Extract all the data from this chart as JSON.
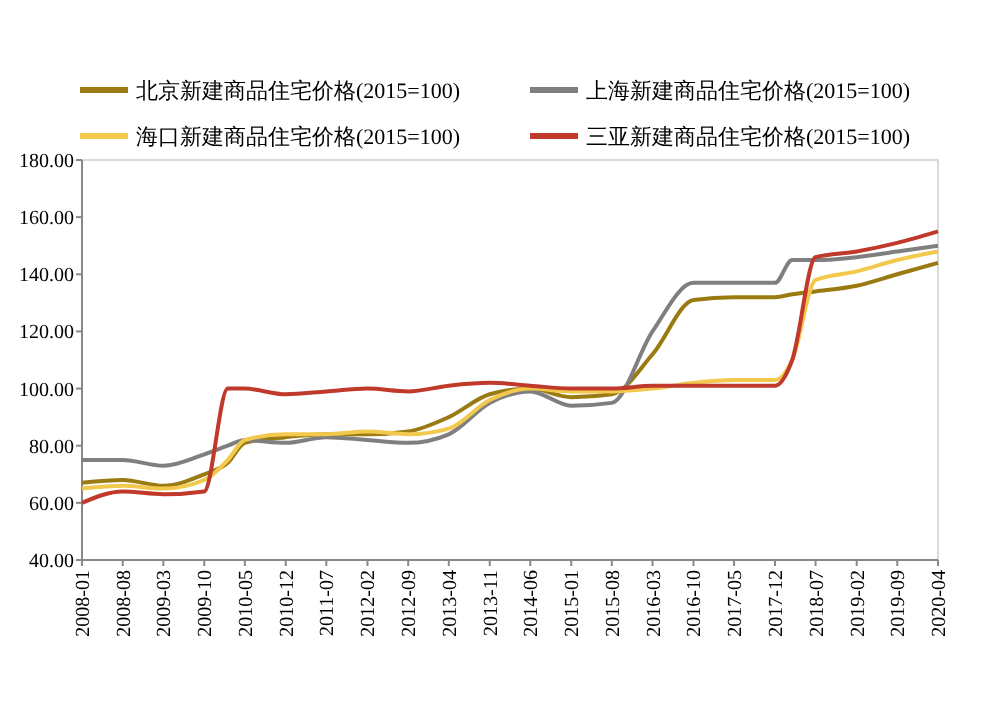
{
  "chart_data": {
    "type": "line",
    "legend": "top",
    "grid": false,
    "xlim": [
      "2008-01",
      "2020-04"
    ],
    "xticks": [
      "2008-01",
      "2008-08",
      "2009-03",
      "2009-10",
      "2010-05",
      "2010-12",
      "2011-07",
      "2012-02",
      "2012-09",
      "2013-04",
      "2013-11",
      "2014-06",
      "2015-01",
      "2015-08",
      "2016-03",
      "2016-10",
      "2017-05",
      "2017-12",
      "2018-07",
      "2019-02",
      "2019-09",
      "2020-04"
    ],
    "ylim": [
      40,
      180
    ],
    "yticks": [
      {
        "value": 40,
        "label": "40.00"
      },
      {
        "value": 60,
        "label": "60.00"
      },
      {
        "value": 80,
        "label": "80.00"
      },
      {
        "value": 100,
        "label": "100.00"
      },
      {
        "value": 120,
        "label": "120.00"
      },
      {
        "value": 140,
        "label": "140.00"
      },
      {
        "value": 160,
        "label": "160.00"
      },
      {
        "value": 180,
        "label": "180.00"
      }
    ],
    "x": [
      "2008-01",
      "2008-08",
      "2009-03",
      "2009-10",
      "2010-02",
      "2010-05",
      "2010-12",
      "2011-07",
      "2012-02",
      "2012-09",
      "2013-04",
      "2013-11",
      "2014-06",
      "2015-01",
      "2015-08",
      "2016-03",
      "2016-10",
      "2017-05",
      "2017-12",
      "2018-03",
      "2018-07",
      "2019-02",
      "2019-09",
      "2020-04"
    ],
    "series": [
      {
        "name": "北京新建商品住宅价格(2015=100)",
        "color": "#9a7b12",
        "values": [
          67,
          68,
          66,
          70,
          74,
          81,
          83,
          84,
          84,
          85,
          90,
          98,
          100,
          97,
          98,
          112,
          131,
          132,
          132,
          133,
          134,
          136,
          140,
          144
        ]
      },
      {
        "name": "上海新建商品住宅价格(2015=100)",
        "color": "#7f7f7f",
        "values": [
          75,
          75,
          73,
          77,
          80,
          82,
          81,
          83,
          82,
          81,
          84,
          95,
          99,
          94,
          95,
          120,
          137,
          137,
          137,
          145,
          145,
          146,
          148,
          150
        ]
      },
      {
        "name": "海口新建商品住宅价格(2015=100)",
        "color": "#f2c94c",
        "values": [
          65,
          66,
          65,
          68,
          75,
          82,
          84,
          84,
          85,
          84,
          86,
          96,
          100,
          99,
          99,
          100,
          102,
          103,
          103,
          110,
          138,
          141,
          145,
          148
        ]
      },
      {
        "name": "三亚新建商品住宅价格(2015=100)",
        "color": "#c0392b",
        "values": [
          60,
          64,
          63,
          64,
          100,
          100,
          98,
          99,
          100,
          99,
          101,
          102,
          101,
          100,
          100,
          101,
          101,
          101,
          101,
          110,
          146,
          148,
          151,
          155
        ]
      }
    ]
  }
}
